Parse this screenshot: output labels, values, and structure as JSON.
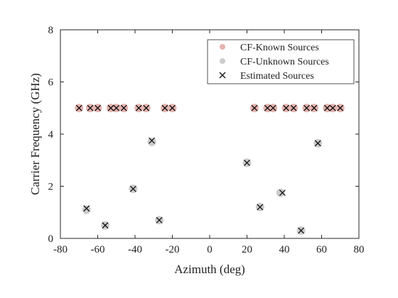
{
  "chart_data": {
    "type": "scatter",
    "title": "",
    "xlabel": "Azimuth (deg)",
    "ylabel": "Carrier Frequency (GHz)",
    "xlim": [
      -80,
      80
    ],
    "ylim": [
      0,
      8
    ],
    "xticks": [
      -80,
      -60,
      -40,
      -20,
      0,
      20,
      40,
      60,
      80
    ],
    "yticks": [
      0,
      2,
      4,
      6,
      8
    ],
    "xtick_labels": [
      "-80",
      "-60",
      "-40",
      "-20",
      "0",
      "20",
      "40",
      "60",
      "80"
    ],
    "ytick_labels": [
      "0",
      "2",
      "4",
      "6",
      "8"
    ],
    "grid": false,
    "legend_position": "top-right",
    "colors": {
      "known": "#e5b4b0",
      "unknown": "#cccccc",
      "estimated": "#111111"
    },
    "series": [
      {
        "name": "CF-Known Sources",
        "marker": "filled-circle",
        "points": [
          {
            "x": -70,
            "y": 5
          },
          {
            "x": -64,
            "y": 5
          },
          {
            "x": -60,
            "y": 5
          },
          {
            "x": -53,
            "y": 5
          },
          {
            "x": -50,
            "y": 5
          },
          {
            "x": -46,
            "y": 5
          },
          {
            "x": -38,
            "y": 5
          },
          {
            "x": -34,
            "y": 5
          },
          {
            "x": -24,
            "y": 5
          },
          {
            "x": -20,
            "y": 5
          },
          {
            "x": 24,
            "y": 5
          },
          {
            "x": 31,
            "y": 5
          },
          {
            "x": 34,
            "y": 5
          },
          {
            "x": 41,
            "y": 5
          },
          {
            "x": 45,
            "y": 5
          },
          {
            "x": 52,
            "y": 5
          },
          {
            "x": 56,
            "y": 5
          },
          {
            "x": 63,
            "y": 5
          },
          {
            "x": 66,
            "y": 5
          },
          {
            "x": 70,
            "y": 5
          }
        ]
      },
      {
        "name": "CF-Unknown Sources",
        "marker": "filled-circle",
        "points": [
          {
            "x": -66,
            "y": 1.1
          },
          {
            "x": -56,
            "y": 0.5
          },
          {
            "x": -41,
            "y": 1.9
          },
          {
            "x": -31,
            "y": 3.7
          },
          {
            "x": -27,
            "y": 0.7
          },
          {
            "x": 20,
            "y": 2.9
          },
          {
            "x": 27,
            "y": 1.2
          },
          {
            "x": 38,
            "y": 1.75
          },
          {
            "x": 49,
            "y": 0.3
          },
          {
            "x": 58,
            "y": 3.65
          }
        ]
      },
      {
        "name": "Estimated Sources",
        "marker": "x",
        "points": [
          {
            "x": -70,
            "y": 5
          },
          {
            "x": -64,
            "y": 5
          },
          {
            "x": -60,
            "y": 5
          },
          {
            "x": -53,
            "y": 5
          },
          {
            "x": -50,
            "y": 5
          },
          {
            "x": -46,
            "y": 5
          },
          {
            "x": -38,
            "y": 5
          },
          {
            "x": -34,
            "y": 5
          },
          {
            "x": -24,
            "y": 5
          },
          {
            "x": -20,
            "y": 5
          },
          {
            "x": 24,
            "y": 5
          },
          {
            "x": 31,
            "y": 5
          },
          {
            "x": 34,
            "y": 5
          },
          {
            "x": 41,
            "y": 5
          },
          {
            "x": 45,
            "y": 5
          },
          {
            "x": 52,
            "y": 5
          },
          {
            "x": 56,
            "y": 5
          },
          {
            "x": 63,
            "y": 5
          },
          {
            "x": 66,
            "y": 5
          },
          {
            "x": 70,
            "y": 5
          },
          {
            "x": -66,
            "y": 1.15
          },
          {
            "x": -56,
            "y": 0.5
          },
          {
            "x": -41,
            "y": 1.9
          },
          {
            "x": -31,
            "y": 3.75
          },
          {
            "x": -27,
            "y": 0.7
          },
          {
            "x": 20,
            "y": 2.9
          },
          {
            "x": 27,
            "y": 1.2
          },
          {
            "x": 39,
            "y": 1.75
          },
          {
            "x": 49,
            "y": 0.3
          },
          {
            "x": 58,
            "y": 3.65
          }
        ]
      }
    ]
  }
}
